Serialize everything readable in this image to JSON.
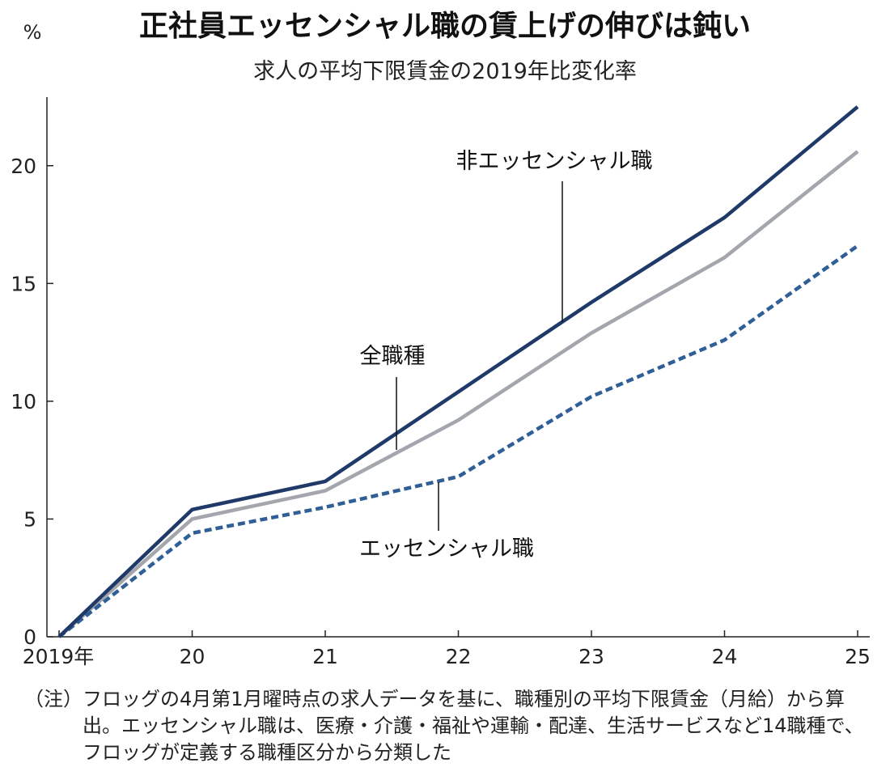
{
  "chart_data": {
    "type": "line",
    "title": "正社員エッセンシャル職の賃上げの伸びは鈍い",
    "subtitle": "求人の平均下限賃金の2019年比変化率",
    "unit": "%",
    "x": [
      "2019年",
      "20",
      "21",
      "22",
      "23",
      "24",
      "25"
    ],
    "y_ticks": [
      0,
      5,
      10,
      15,
      20
    ],
    "ylim": [
      0,
      22.5
    ],
    "grid": false,
    "series": [
      {
        "name": "非エッセンシャル職",
        "color": "#1f3a68",
        "style": "solid",
        "values": [
          0,
          5.4,
          6.6,
          10.4,
          14.2,
          17.8,
          22.5
        ]
      },
      {
        "name": "全職種",
        "color": "#a3a6ad",
        "style": "solid",
        "values": [
          0,
          5.0,
          6.2,
          9.2,
          12.9,
          16.1,
          20.6
        ]
      },
      {
        "name": "エッセンシャル職",
        "color": "#2f5f96",
        "style": "dashed",
        "values": [
          0,
          4.4,
          5.5,
          6.8,
          10.2,
          12.6,
          16.6
        ]
      }
    ]
  },
  "note": {
    "prefix": "（注）",
    "text": "フロッグの4月第1月曜時点の求人データを基に、職種別の平均下限賃金（月給）から算出。エッセンシャル職は、医療・介護・福祉や運輸・配達、生活サービスなど14職種で、フロッグが定義する職種区分から分類した"
  }
}
